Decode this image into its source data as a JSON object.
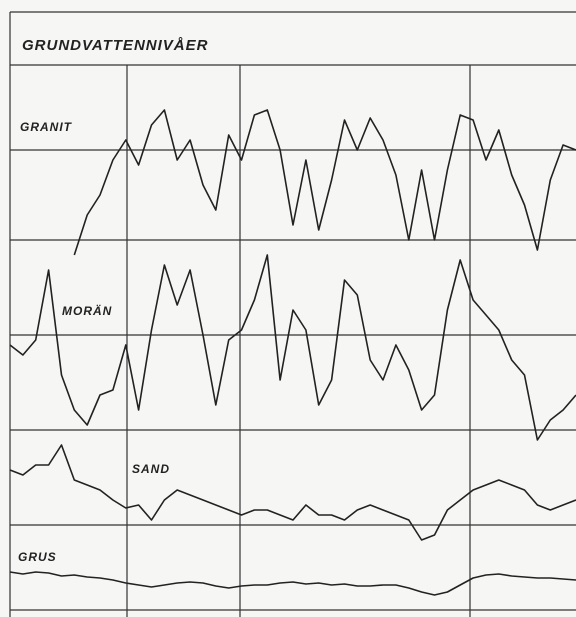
{
  "chart_data": {
    "type": "line",
    "title": "GRUNDVATTENNIVÅER",
    "categories": [
      null,
      null,
      null,
      null,
      null,
      null,
      null,
      null,
      null,
      null,
      null,
      null,
      null,
      null,
      null,
      null,
      null,
      null,
      null,
      null,
      null,
      null,
      null,
      null,
      null,
      null,
      null,
      null,
      null,
      null,
      null,
      null,
      null,
      null,
      null,
      null,
      null,
      null,
      null,
      null,
      null,
      null,
      null,
      null,
      null
    ],
    "ylim": [
      0,
      545
    ],
    "series": [
      {
        "name": "GRANIT",
        "color": "#222222",
        "values": [
          null,
          null,
          null,
          null,
          null,
          355,
          395,
          415,
          450,
          470,
          445,
          485,
          500,
          450,
          470,
          425,
          400,
          475,
          450,
          495,
          500,
          460,
          385,
          450,
          380,
          430,
          490,
          460,
          492,
          470,
          435,
          370,
          440,
          370,
          440,
          495,
          490,
          450,
          480,
          435,
          405,
          360,
          430,
          465,
          460
        ]
      },
      {
        "name": "MORÄN",
        "color": "#222222",
        "values": [
          265,
          255,
          270,
          340,
          235,
          200,
          185,
          215,
          220,
          265,
          200,
          280,
          345,
          305,
          340,
          275,
          205,
          270,
          280,
          310,
          355,
          230,
          300,
          280,
          205,
          230,
          330,
          315,
          250,
          230,
          265,
          240,
          200,
          215,
          300,
          350,
          310,
          295,
          280,
          250,
          235,
          170,
          190,
          200,
          215
        ]
      },
      {
        "name": "SAND",
        "color": "#222222",
        "values": [
          140,
          135,
          145,
          145,
          165,
          130,
          125,
          120,
          110,
          102,
          105,
          90,
          110,
          120,
          115,
          110,
          105,
          100,
          95,
          100,
          100,
          95,
          90,
          105,
          95,
          95,
          90,
          100,
          105,
          100,
          95,
          90,
          70,
          75,
          100,
          110,
          120,
          125,
          130,
          125,
          120,
          105,
          100,
          105,
          110
        ]
      },
      {
        "name": "GRUS",
        "color": "#222222",
        "values": [
          38,
          36,
          38,
          37,
          34,
          35,
          33,
          32,
          30,
          27,
          25,
          23,
          25,
          27,
          28,
          27,
          24,
          22,
          24,
          25,
          25,
          27,
          28,
          26,
          27,
          25,
          26,
          24,
          24,
          25,
          25,
          22,
          18,
          15,
          18,
          25,
          32,
          35,
          36,
          34,
          33,
          32,
          32,
          31,
          30
        ]
      }
    ]
  }
}
